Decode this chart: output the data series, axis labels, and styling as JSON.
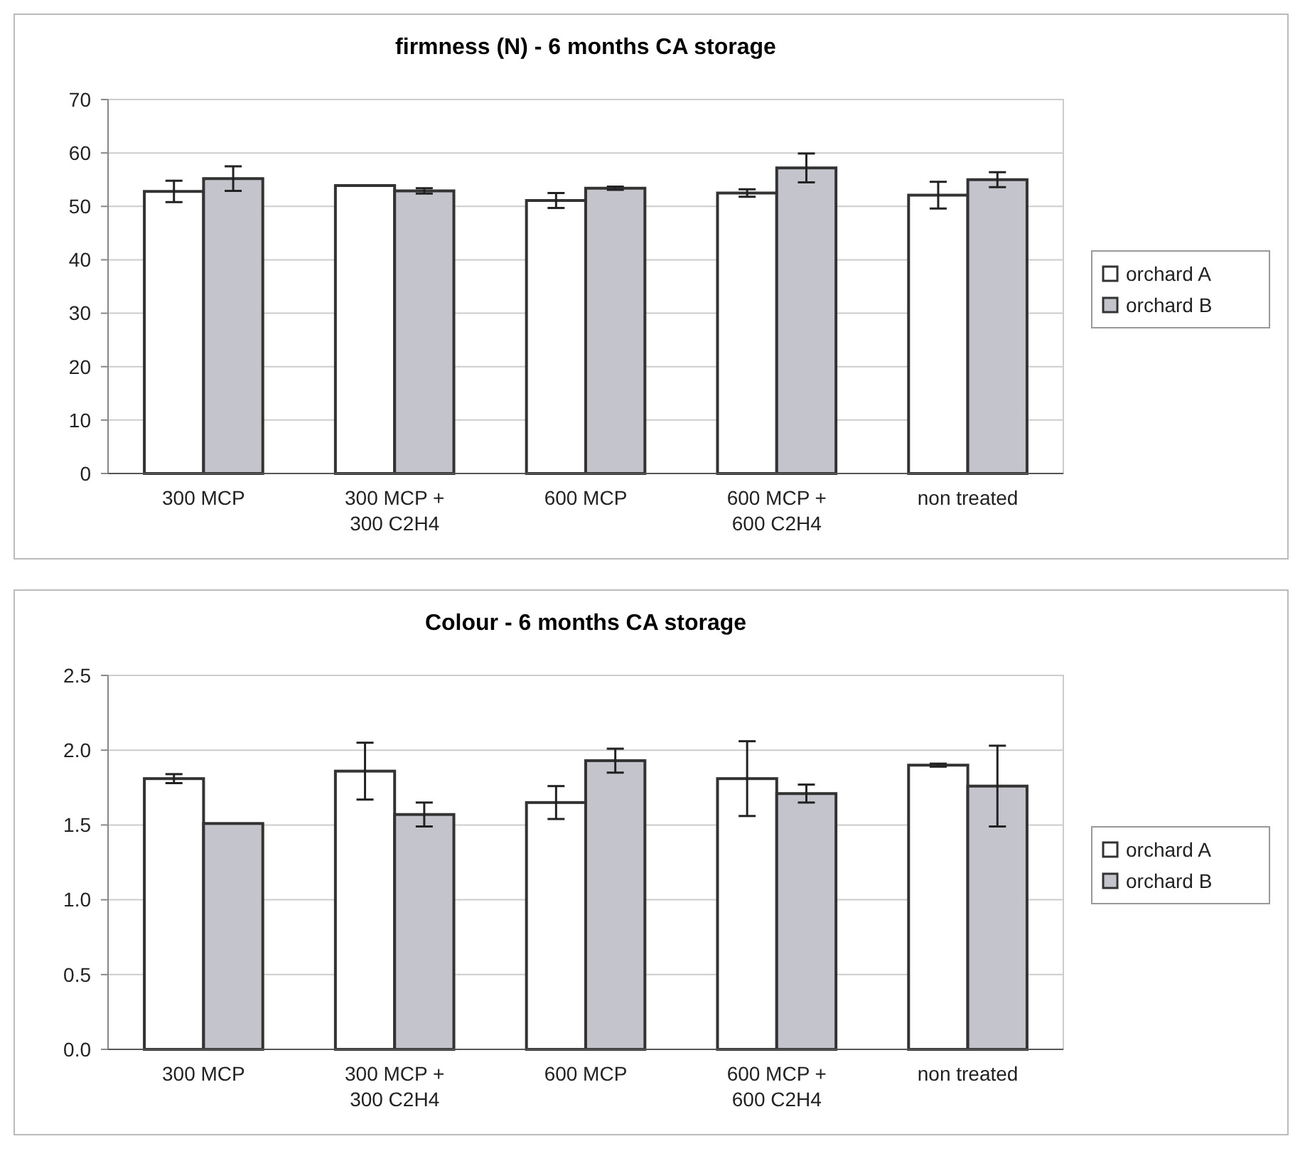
{
  "chart_data": [
    {
      "type": "bar",
      "title": "firmness (N) -  6 months CA storage",
      "categories": [
        "300 MCP",
        "300 MCP + 300 C2H4",
        "600 MCP",
        "600 MCP + 600 C2H4",
        "non treated"
      ],
      "series": [
        {
          "name": "orchard A",
          "color": "#ffffff",
          "values": [
            52.8,
            53.9,
            51.1,
            52.5,
            52.1
          ],
          "errors": [
            2,
            null,
            1.4,
            0.7,
            2.5
          ]
        },
        {
          "name": "orchard B",
          "color": "#c4c4cc",
          "values": [
            55.2,
            52.9,
            53.4,
            57.2,
            55.0
          ],
          "errors": [
            2.3,
            0.5,
            0.3,
            2.7,
            1.4
          ]
        }
      ],
      "ylim": [
        0,
        70
      ],
      "yticks": [
        0,
        10,
        20,
        30,
        40,
        50,
        60,
        70
      ],
      "grid": "y",
      "legend": "right"
    },
    {
      "type": "bar",
      "title": "Colour  -   6 months CA storage",
      "categories": [
        "300 MCP",
        "300 MCP + 300 C2H4",
        "600 MCP",
        "600 MCP + 600 C2H4",
        "non treated"
      ],
      "series": [
        {
          "name": "orchard A",
          "color": "#ffffff",
          "values": [
            1.81,
            1.86,
            1.65,
            1.81,
            1.9
          ],
          "errors": [
            0.03,
            0.19,
            0.11,
            0.25,
            0.01
          ]
        },
        {
          "name": "orchard B",
          "color": "#c4c4cc",
          "values": [
            1.51,
            1.57,
            1.93,
            1.71,
            1.76
          ],
          "errors": [
            null,
            0.08,
            0.08,
            0.06,
            0.27
          ]
        }
      ],
      "ylim": [
        0,
        2.5
      ],
      "yticks": [
        {
          "value": 0,
          "label": "0.0"
        },
        {
          "value": 0.5,
          "label": "0.5"
        },
        {
          "value": 1,
          "label": "1.0"
        },
        {
          "value": 1.5,
          "label": "1.5"
        },
        {
          "value": 2,
          "label": "2.0"
        },
        {
          "value": 2.5,
          "label": "2.5"
        }
      ],
      "grid": "y",
      "legend": "right"
    }
  ]
}
